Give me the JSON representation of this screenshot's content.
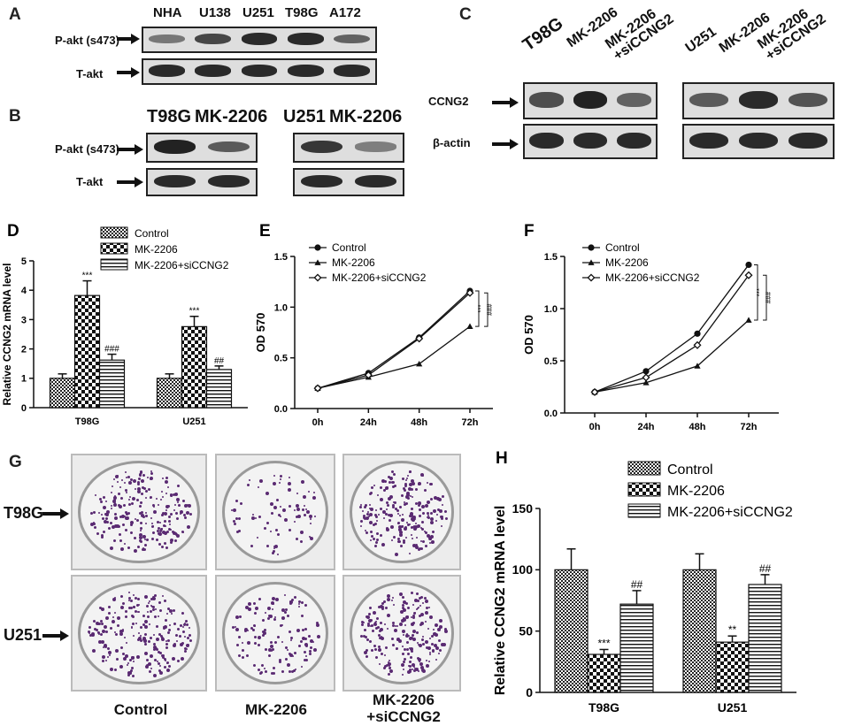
{
  "panels": {
    "a": {
      "letter": "A",
      "lanes": [
        "NHA",
        "U138",
        "U251",
        "T98G",
        "A172"
      ],
      "rows": [
        "P-akt (s473)",
        "T-akt"
      ],
      "intensity": [
        [
          0.4,
          0.75,
          0.95,
          0.95,
          0.55
        ],
        [
          0.95,
          0.95,
          0.95,
          0.95,
          0.95
        ]
      ]
    },
    "b": {
      "letter": "B",
      "lanes_left": [
        "T98G",
        "MK-2206"
      ],
      "lanes_right": [
        "U251",
        "MK-2206"
      ],
      "rows": [
        "P-akt (s473)",
        "T-akt"
      ],
      "intensity_left": [
        [
          1.0,
          0.6
        ],
        [
          0.95,
          0.95
        ]
      ],
      "intensity_right": [
        [
          0.85,
          0.35
        ],
        [
          0.95,
          0.95
        ]
      ]
    },
    "c": {
      "letter": "C",
      "lanes_left": [
        "T98G",
        "MK-2206",
        "MK-2206\n+siCCNG2"
      ],
      "lanes_right": [
        "U251",
        "MK-2206",
        "MK-2206\n+siCCNG2"
      ],
      "rows": [
        "CCNG2",
        "β-actin"
      ],
      "intensity_left": [
        [
          0.7,
          1.0,
          0.55
        ],
        [
          0.95,
          0.95,
          0.95
        ]
      ],
      "intensity_right": [
        [
          0.6,
          0.95,
          0.65
        ],
        [
          0.95,
          0.95,
          0.95
        ]
      ]
    },
    "g": {
      "letter": "G",
      "rows": [
        "T98G",
        "U251"
      ],
      "columns": [
        "Control",
        "MK-2206",
        "MK-2206\n+siCCNG2"
      ],
      "colony_density": [
        [
          0.9,
          0.3,
          0.85
        ],
        [
          0.9,
          0.5,
          0.85
        ]
      ]
    }
  },
  "chart_data": [
    {
      "id": "D",
      "letter": "D",
      "type": "bar",
      "categories": [
        "T98G",
        "U251"
      ],
      "series": [
        {
          "name": "Control",
          "values": [
            1.0,
            1.0
          ],
          "errors": [
            0.15,
            0.15
          ],
          "marks": [
            "",
            ""
          ]
        },
        {
          "name": "MK-2206",
          "values": [
            3.82,
            2.76
          ],
          "errors": [
            0.5,
            0.35
          ],
          "marks": [
            "***",
            "***"
          ]
        },
        {
          "name": "MK-2206+siCCNG2",
          "values": [
            1.62,
            1.3
          ],
          "errors": [
            0.2,
            0.12
          ],
          "marks": [
            "###",
            "##"
          ]
        }
      ],
      "ylabel": "Relative CCNG2 mRNA level",
      "xlabel": "",
      "ylim": [
        0,
        5
      ],
      "yticks": [
        "0",
        "1",
        "2",
        "3",
        "4",
        "5"
      ],
      "legend_position": "top"
    },
    {
      "id": "E",
      "letter": "E",
      "type": "line",
      "x": [
        "0h",
        "24h",
        "48h",
        "72h"
      ],
      "series": [
        {
          "name": "Control",
          "marker": "circle",
          "values": [
            0.2,
            0.35,
            0.7,
            1.16
          ]
        },
        {
          "name": "MK-2206",
          "marker": "triangle",
          "values": [
            0.2,
            0.31,
            0.44,
            0.81
          ]
        },
        {
          "name": "MK-2206+siCCNG2",
          "marker": "diamond",
          "values": [
            0.2,
            0.33,
            0.69,
            1.14
          ]
        }
      ],
      "ylabel": "OD 570",
      "xlabel": "",
      "ylim": [
        0,
        1.5
      ],
      "yticks": [
        "0.0",
        "0.5",
        "1.0",
        "1.5"
      ],
      "sig_marks": [
        "***",
        "###"
      ],
      "legend_position": "top-left"
    },
    {
      "id": "F",
      "letter": "F",
      "type": "line",
      "x": [
        "0h",
        "24h",
        "48h",
        "72h"
      ],
      "series": [
        {
          "name": "Control",
          "marker": "circle",
          "values": [
            0.2,
            0.4,
            0.76,
            1.42
          ]
        },
        {
          "name": "MK-2206",
          "marker": "triangle",
          "values": [
            0.2,
            0.29,
            0.45,
            0.89
          ]
        },
        {
          "name": "MK-2206+siCCNG2",
          "marker": "diamond",
          "values": [
            0.2,
            0.34,
            0.65,
            1.32
          ]
        }
      ],
      "ylabel": "OD 570",
      "xlabel": "",
      "ylim": [
        0,
        1.5
      ],
      "yticks": [
        "0.0",
        "0.5",
        "1.0",
        "1.5"
      ],
      "sig_marks": [
        "***",
        "###"
      ],
      "legend_position": "top-left"
    },
    {
      "id": "H",
      "letter": "H",
      "type": "bar",
      "categories": [
        "T98G",
        "U251"
      ],
      "series": [
        {
          "name": "Control",
          "values": [
            100,
            100
          ],
          "errors": [
            17,
            13
          ],
          "marks": [
            "",
            ""
          ]
        },
        {
          "name": "MK-2206",
          "values": [
            31,
            41
          ],
          "errors": [
            4,
            5
          ],
          "marks": [
            "***",
            "**"
          ]
        },
        {
          "name": "MK-2206+siCCNG2",
          "values": [
            72,
            88
          ],
          "errors": [
            11,
            8
          ],
          "marks": [
            "##",
            "##"
          ]
        }
      ],
      "ylabel": "Relative CCNG2 mRNA level",
      "xlabel": "",
      "ylim": [
        0,
        150
      ],
      "yticks": [
        "0",
        "50",
        "100",
        "150"
      ],
      "legend_position": "top"
    }
  ]
}
